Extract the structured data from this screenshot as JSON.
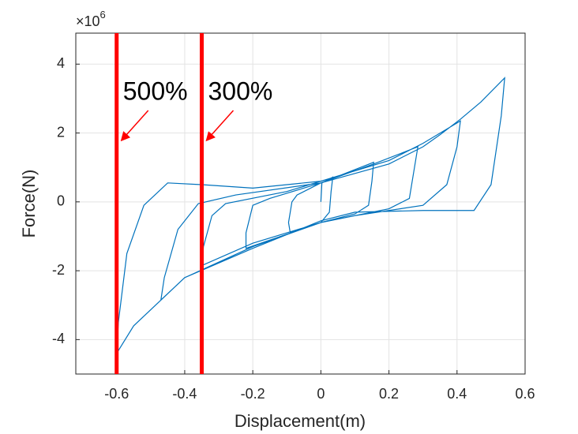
{
  "chart_data": {
    "type": "line",
    "x_label": "Displacement(m)",
    "y_label": "Force(N)",
    "y_multiplier": {
      "base": "×10",
      "exponent": "6"
    },
    "xlim": [
      -0.72,
      0.6
    ],
    "ylim": [
      -5,
      4.9
    ],
    "xticks": [
      -0.6,
      -0.4,
      -0.2,
      0,
      0.2,
      0.4,
      0.6
    ],
    "yticks": [
      -4,
      -2,
      0,
      2,
      4
    ],
    "grid": true,
    "series": [
      {
        "color": "#0072bd",
        "x": [
          0,
          0.003,
          0.035,
          0.03,
          0.025,
          0,
          -0.09,
          -0.095,
          -0.085,
          -0.07,
          0,
          0.155,
          0.15,
          0.14,
          0.1,
          0,
          -0.22,
          -0.22,
          -0.2,
          -0.15,
          0,
          0.155,
          0.285,
          0.275,
          0.26,
          0.2,
          0,
          -0.2,
          -0.35,
          -0.345,
          -0.32,
          -0.28,
          -0.1,
          0,
          0.2,
          0.3,
          0.41,
          0.4,
          0.37,
          0.3,
          0.1,
          0,
          -0.2,
          -0.4,
          -0.47,
          -0.46,
          -0.42,
          -0.36,
          -0.25,
          0,
          0.2,
          0.3,
          0.35,
          0.41,
          0.47,
          0.54,
          0.53,
          0.5,
          0.45,
          0.3,
          0.1,
          0,
          -0.2,
          -0.4,
          -0.55,
          -0.6,
          -0.595,
          -0.57,
          -0.52,
          -0.45,
          -0.35,
          -0.2,
          0
        ],
        "values": [
          0,
          0.55,
          0.72,
          0.3,
          -0.3,
          -0.6,
          -0.9,
          -0.6,
          0,
          0.2,
          0.55,
          1.15,
          0.6,
          -0.1,
          -0.35,
          -0.6,
          -1.35,
          -0.9,
          -0.1,
          0.1,
          0.55,
          1.1,
          1.6,
          1.0,
          0.1,
          -0.2,
          -0.6,
          -1.2,
          -1.85,
          -1.3,
          -0.4,
          -0.05,
          0.3,
          0.6,
          1.2,
          1.7,
          2.35,
          1.6,
          0.5,
          -0.1,
          -0.4,
          -0.6,
          -1.3,
          -2.2,
          -2.85,
          -2.2,
          -0.8,
          -0.05,
          0.2,
          0.55,
          1.1,
          1.6,
          1.95,
          2.4,
          2.9,
          3.6,
          2.5,
          0.5,
          -0.25,
          -0.25,
          -0.3,
          -0.55,
          -1.35,
          -2.2,
          -3.6,
          -4.4,
          -3.5,
          -1.5,
          -0.1,
          0.55,
          0.5,
          0.4,
          0.6
        ]
      }
    ],
    "annotations": [
      {
        "text": "500%",
        "x": -0.6,
        "color": "#ff0000"
      },
      {
        "text": "300%",
        "x": -0.35,
        "color": "#ff0000"
      }
    ]
  }
}
